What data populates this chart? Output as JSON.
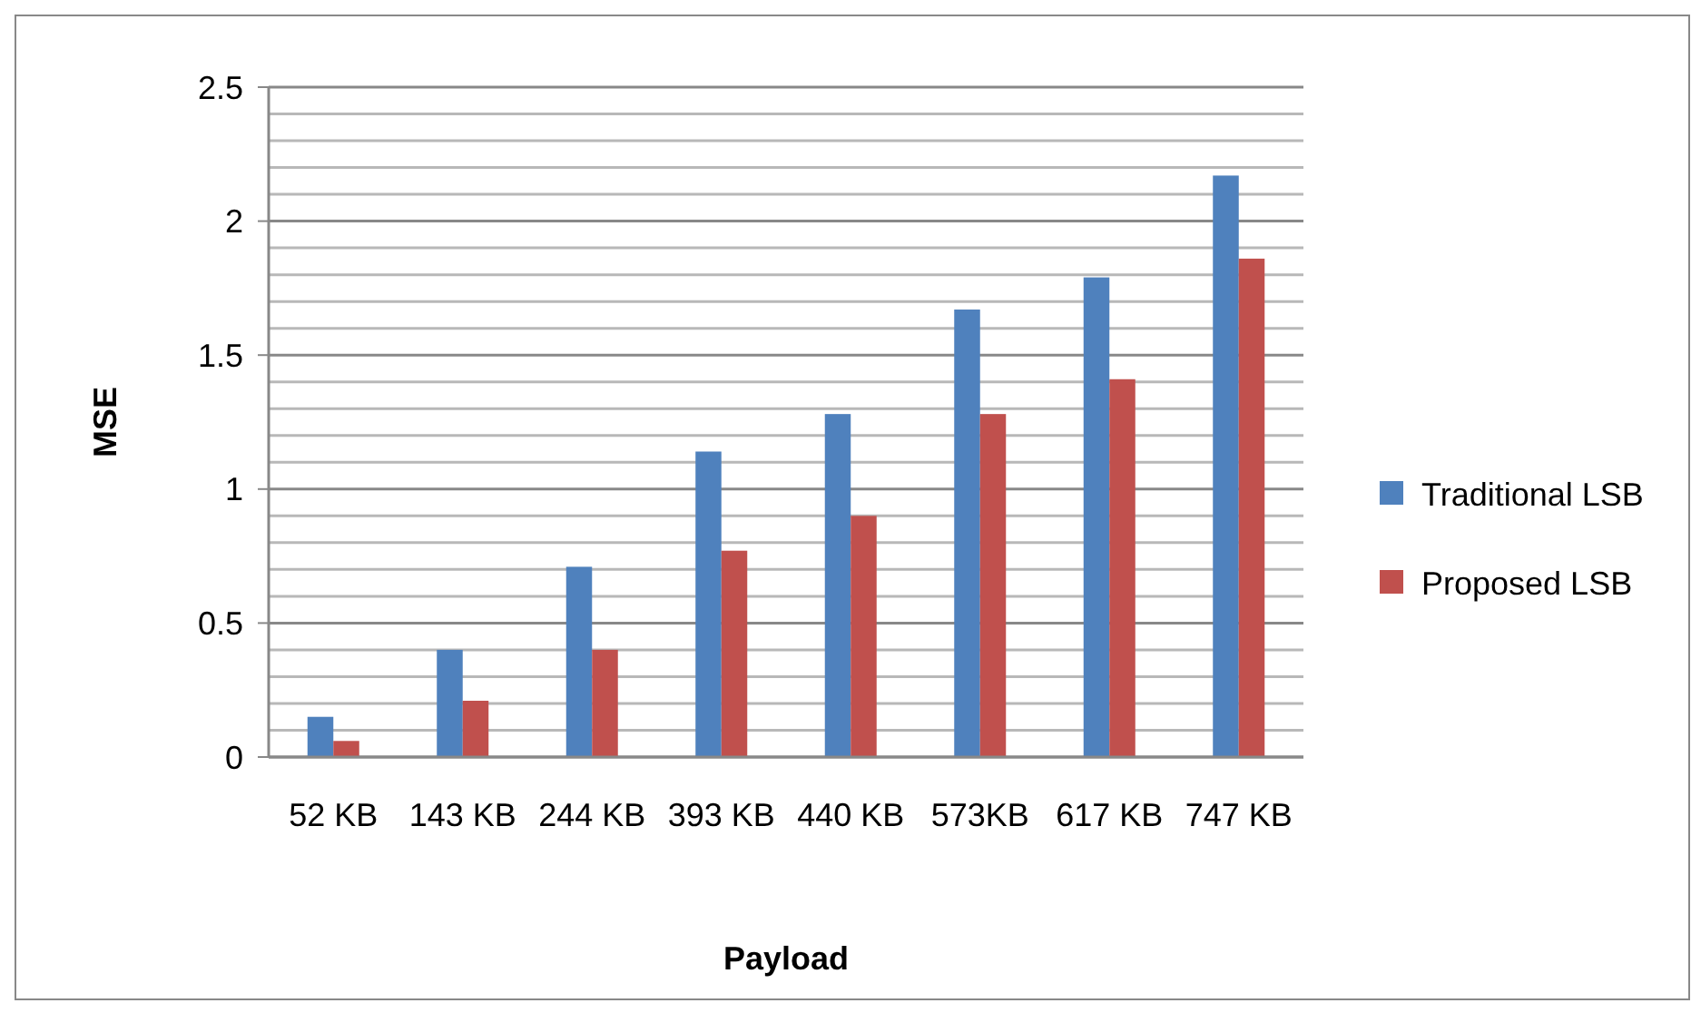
{
  "chart_data": {
    "type": "bar",
    "xlabel": "Payload",
    "ylabel": "MSE",
    "categories": [
      "52 KB",
      "143 KB",
      "244 KB",
      "393 KB",
      "440 KB",
      "573KB",
      "617 KB",
      "747 KB"
    ],
    "series": [
      {
        "name": "Traditional LSB",
        "color": "#4f81bd",
        "values": [
          0.15,
          0.4,
          0.71,
          1.14,
          1.28,
          1.67,
          1.79,
          2.17
        ]
      },
      {
        "name": "Proposed LSB",
        "color": "#c0504d",
        "values": [
          0.06,
          0.21,
          0.4,
          0.77,
          0.9,
          1.28,
          1.41,
          1.86
        ]
      }
    ],
    "ylim": [
      0,
      2.5
    ],
    "yticks": [
      0,
      {
        "value": 0.1,
        "label": null
      },
      {
        "value": 0.2,
        "label": null
      },
      {
        "value": 0.3,
        "label": null
      },
      {
        "value": 0.4,
        "label": null
      },
      0.5,
      {
        "value": 0.6,
        "label": null
      },
      {
        "value": 0.7,
        "label": null
      },
      {
        "value": 0.8,
        "label": null
      },
      {
        "value": 0.9,
        "label": null
      },
      1,
      {
        "value": 1.1,
        "label": null
      },
      {
        "value": 1.2,
        "label": null
      },
      {
        "value": 1.3,
        "label": null
      },
      {
        "value": 1.4,
        "label": null
      },
      1.5,
      {
        "value": 1.6,
        "label": null
      },
      {
        "value": 1.7,
        "label": null
      },
      {
        "value": 1.8,
        "label": null
      },
      {
        "value": 1.9,
        "label": null
      },
      2,
      {
        "value": 2.1,
        "label": null
      },
      {
        "value": 2.2,
        "label": null
      },
      {
        "value": 2.3,
        "label": null
      },
      {
        "value": 2.4,
        "label": null
      },
      2.5
    ],
    "grid": true,
    "legend": "right"
  }
}
